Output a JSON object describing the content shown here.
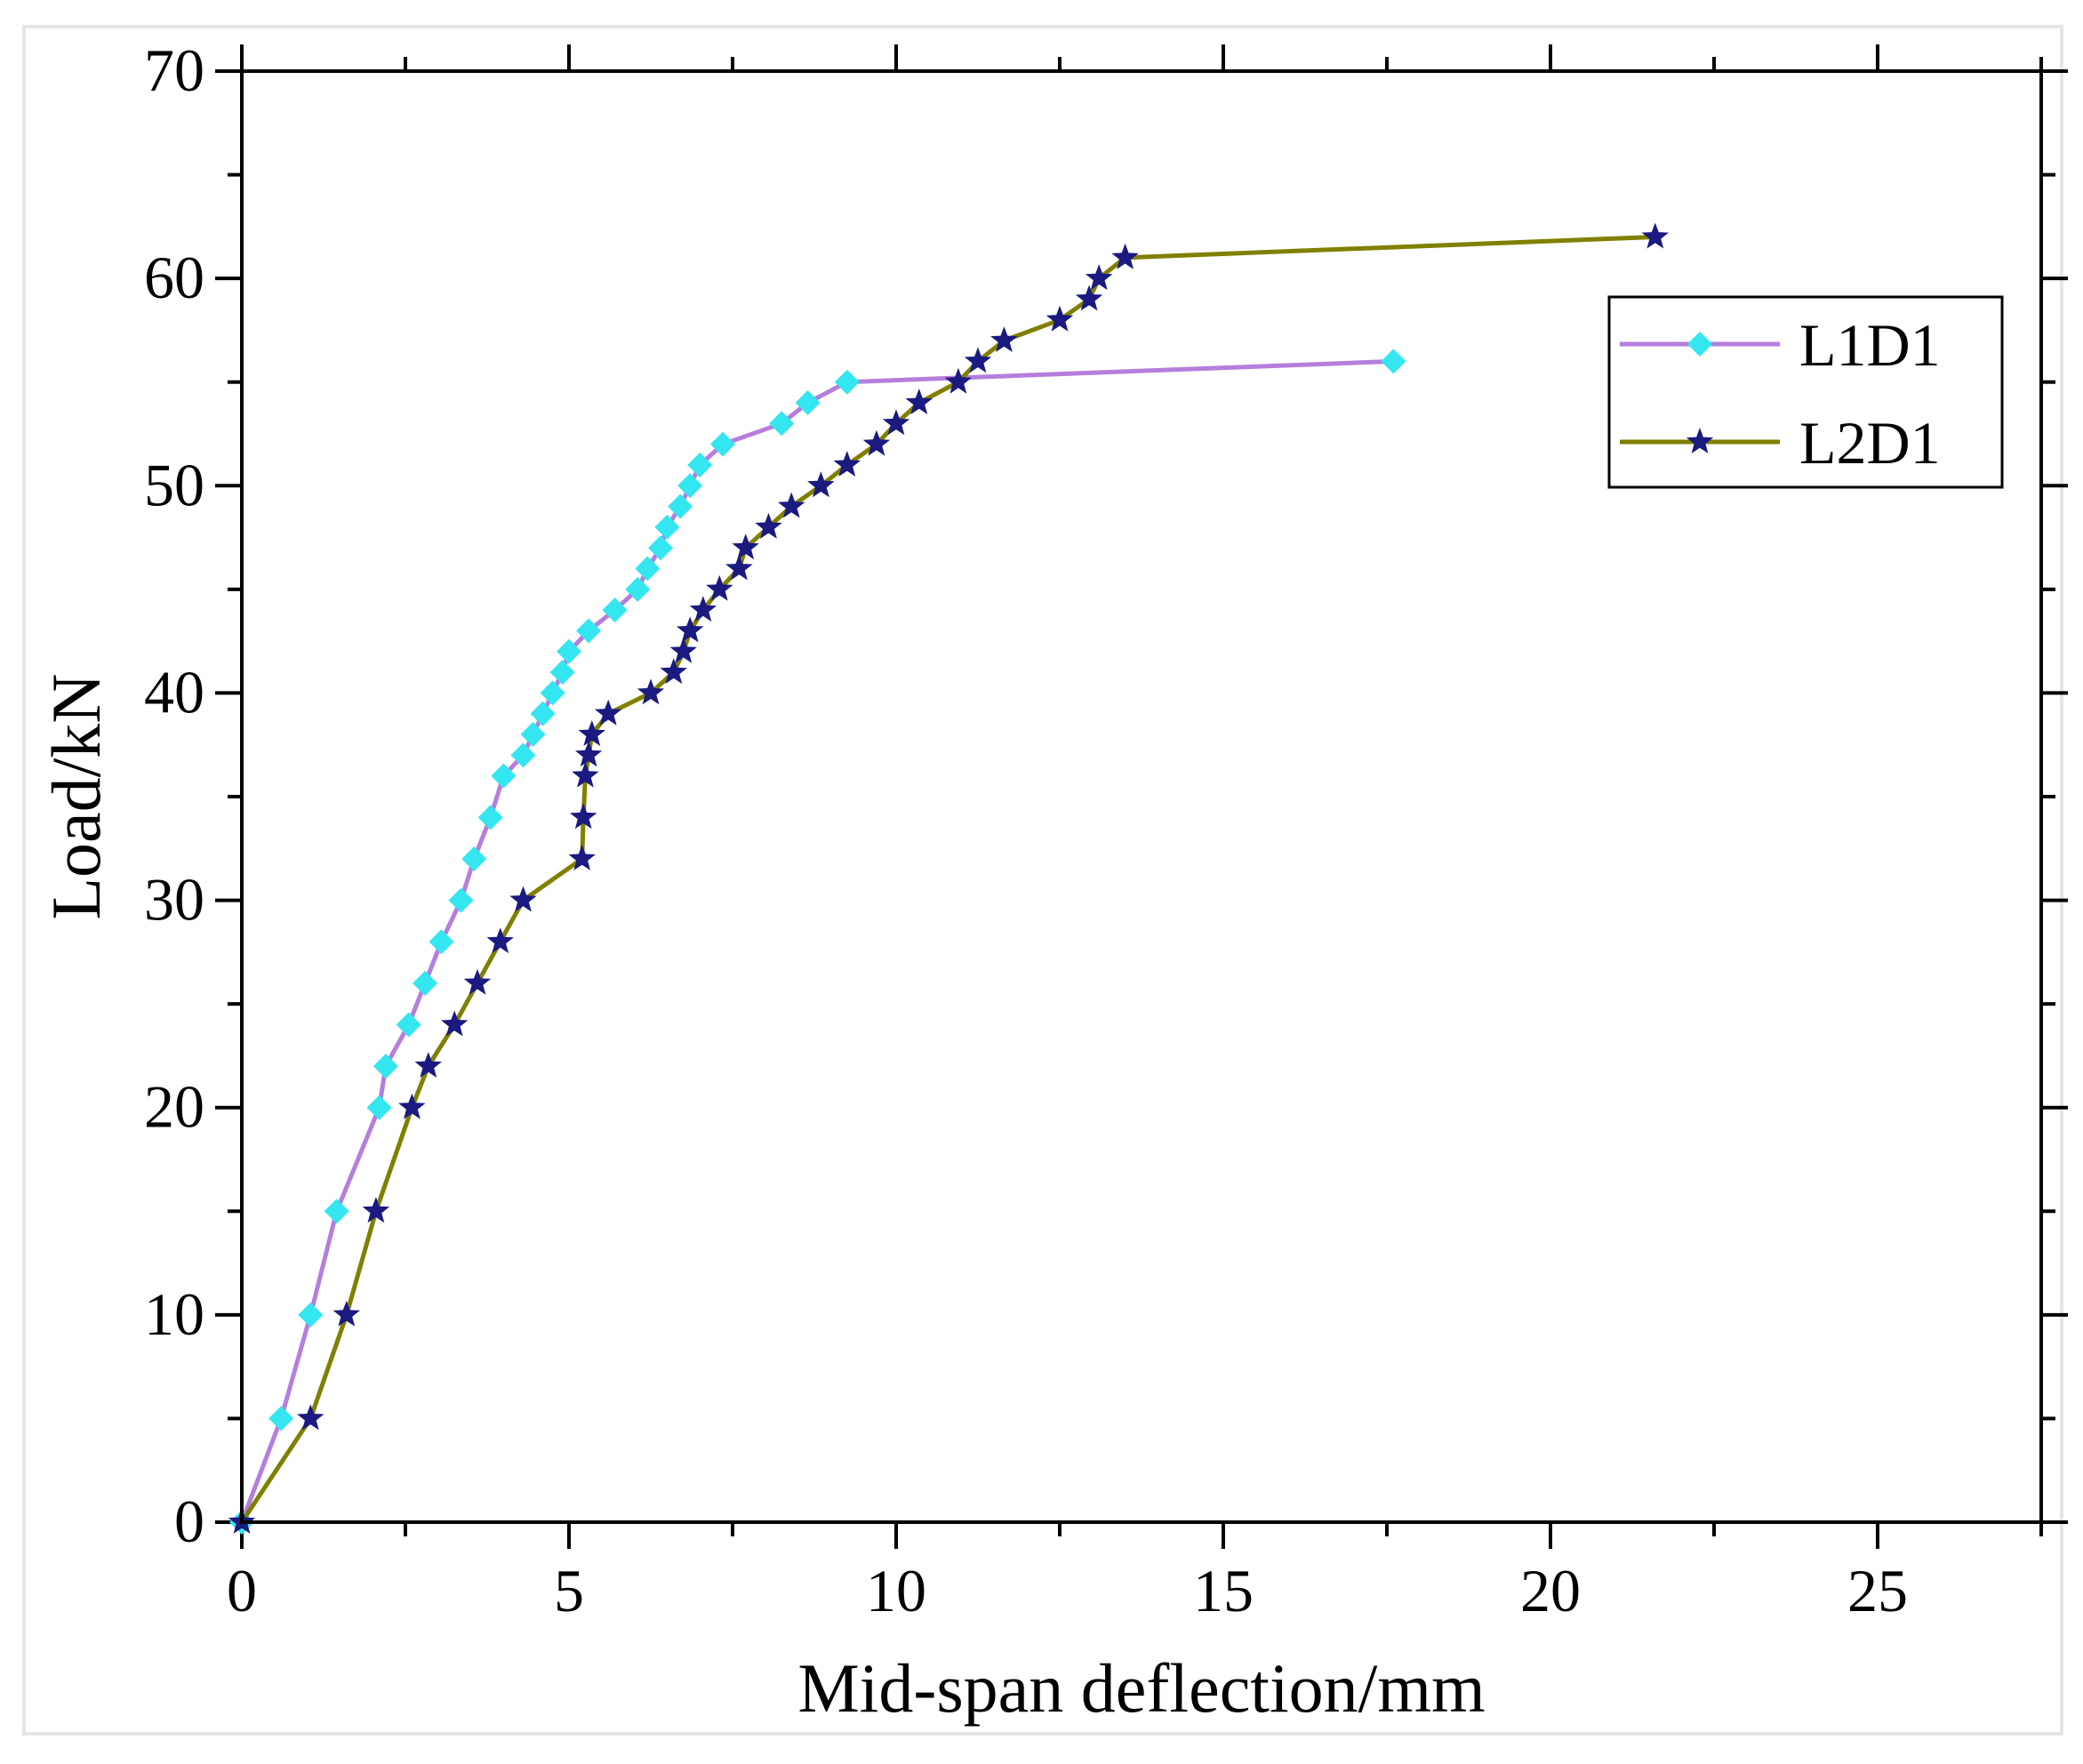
{
  "chart_data": {
    "type": "line",
    "title": "",
    "xlabel": "Mid-span deflection/mm",
    "ylabel": "Load/kN",
    "xlim": [
      0,
      27.5
    ],
    "ylim": [
      0,
      70
    ],
    "xticks": [
      0,
      5,
      10,
      15,
      20,
      25
    ],
    "yticks": [
      0,
      10,
      20,
      30,
      40,
      50,
      60,
      70
    ],
    "grid": false,
    "legend_position": "top-right",
    "series": [
      {
        "name": "L1D1",
        "line_color": "#b57edc",
        "marker_color": "#33e6f0",
        "marker": "diamond",
        "x": [
          0,
          0.6,
          1.05,
          1.45,
          2.1,
          2.2,
          2.55,
          2.8,
          3.05,
          3.35,
          3.55,
          3.8,
          4.0,
          4.3,
          4.45,
          4.6,
          4.75,
          4.9,
          5.0,
          5.3,
          5.7,
          6.05,
          6.2,
          6.4,
          6.5,
          6.7,
          6.85,
          7.0,
          7.35,
          8.25,
          8.65,
          9.25,
          17.6
        ],
        "y": [
          0,
          5,
          10,
          15,
          20,
          22,
          24,
          26,
          28,
          30,
          32,
          34,
          36,
          37,
          38,
          39,
          40,
          41,
          42,
          43,
          44,
          45,
          46,
          47,
          48,
          49,
          50,
          51,
          52,
          53,
          54,
          55,
          56
        ]
      },
      {
        "name": "L2D1",
        "line_color": "#808000",
        "marker_color": "#1a1a80",
        "marker": "star",
        "x": [
          0,
          1.05,
          1.6,
          2.05,
          2.6,
          2.85,
          3.25,
          3.6,
          3.95,
          4.3,
          5.2,
          5.22,
          5.25,
          5.3,
          5.35,
          5.6,
          6.25,
          6.6,
          6.75,
          6.85,
          7.05,
          7.3,
          7.6,
          7.7,
          8.05,
          8.4,
          8.85,
          9.25,
          9.7,
          10.0,
          10.35,
          10.95,
          11.25,
          11.65,
          12.5,
          12.95,
          13.1,
          13.5,
          21.6
        ],
        "y": [
          0,
          5,
          10,
          15,
          20,
          22,
          24,
          26,
          28,
          30,
          32,
          34,
          36,
          37,
          38,
          39,
          40,
          41,
          42,
          43,
          44,
          45,
          46,
          47,
          48,
          49,
          50,
          51,
          52,
          53,
          54,
          55,
          56,
          57,
          58,
          59,
          60,
          61,
          62
        ]
      }
    ]
  }
}
